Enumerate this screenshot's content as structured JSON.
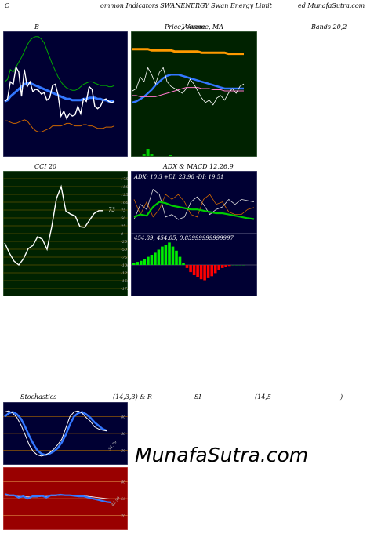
{
  "header": {
    "left": "C",
    "center": "ommon  Indicators SWANENERGY Swan  Energy Limit",
    "right": "ed MunafaSutra.com"
  },
  "panels": {
    "bollinger": {
      "title": "B",
      "subtitle": "Bands 20,2"
    },
    "price": {
      "title": "Price,  Volume, MA",
      "overlay": "Volume"
    },
    "cci": {
      "title": "CCI 20",
      "value": "73",
      "ticks": [
        "175",
        "150",
        "125",
        "100",
        "75",
        "50",
        "25",
        "0",
        "-25",
        "-50",
        "-75",
        "-100",
        "-125",
        "-150",
        "-175"
      ]
    },
    "adx": {
      "title": "ADX  & MACD 12,26,9",
      "readout": "ADX: 10.3  +DI: 23.98  -DI: 19.51"
    },
    "macd": {
      "readout": "454.89,  454.05,  0.83999999999997"
    },
    "stoch": {
      "title": "Stochastics",
      "params": "(14,3,3) & R",
      "ticks": [
        "80",
        "50",
        "20"
      ],
      "value": "54.79"
    },
    "rsi": {
      "title": "SI",
      "params": "(14,5",
      "close": ")",
      "ticks": [
        "80",
        "50",
        "20"
      ],
      "value": "42.99"
    }
  },
  "watermark": "MunafaSutra.com",
  "colors": {
    "navy": "#000033",
    "green_bg": "#002200",
    "red_bg": "#990000",
    "blue": "#3377ff",
    "orange": "#ff9900",
    "line_green": "#00cc00"
  },
  "chart_data": [
    {
      "type": "line",
      "name": "bollinger",
      "x": [
        1,
        2,
        3,
        4,
        5,
        6,
        7,
        8,
        9,
        10,
        11,
        12,
        13,
        14,
        15,
        16,
        17,
        18,
        19,
        20,
        21,
        22,
        23,
        24,
        25,
        26,
        27,
        28,
        29,
        30,
        31,
        32,
        33,
        34,
        35,
        36,
        37,
        38,
        39,
        40
      ],
      "series": [
        {
          "name": "upper",
          "values": [
            60,
            62,
            70,
            68,
            72,
            76,
            80,
            85,
            90,
            94,
            96,
            97,
            97,
            95,
            92,
            86,
            80,
            74,
            69,
            64,
            60,
            57,
            55,
            54,
            53,
            53,
            54,
            56,
            58,
            59,
            60,
            60,
            59,
            58,
            57,
            57,
            57,
            56,
            56,
            57
          ]
        },
        {
          "name": "middle",
          "values": [
            44,
            45,
            48,
            50,
            52,
            54,
            56,
            58,
            59,
            59,
            58,
            57,
            56,
            55,
            54,
            53,
            52,
            51,
            50,
            49,
            48,
            47,
            46,
            46,
            45,
            45,
            45,
            45,
            46,
            46,
            47,
            47,
            47,
            46,
            46,
            45,
            45,
            44,
            44,
            44
          ]
        },
        {
          "name": "lower",
          "values": [
            28,
            28,
            27,
            26,
            26,
            27,
            28,
            29,
            28,
            25,
            22,
            20,
            19,
            19,
            20,
            21,
            22,
            24,
            24,
            24,
            24,
            25,
            26,
            26,
            25,
            24,
            24,
            24,
            25,
            25,
            24,
            24,
            23,
            22,
            22,
            22,
            23,
            23,
            23,
            24
          ]
        },
        {
          "name": "price",
          "values": [
            44,
            46,
            60,
            58,
            72,
            68,
            48,
            70,
            56,
            60,
            52,
            54,
            53,
            50,
            51,
            45,
            47,
            57,
            58,
            49,
            32,
            36,
            30,
            34,
            32,
            33,
            40,
            34,
            46,
            44,
            56,
            54,
            40,
            38,
            40,
            45,
            46,
            44,
            43,
            44
          ]
        }
      ]
    },
    {
      "type": "line",
      "name": "price_ma",
      "x": [
        1,
        2,
        3,
        4,
        5,
        6,
        7,
        8,
        9,
        10,
        11,
        12,
        13,
        14,
        15,
        16,
        17,
        18,
        19,
        20,
        21,
        22,
        23,
        24,
        25,
        26,
        27,
        28,
        29,
        30
      ],
      "series": [
        {
          "name": "ma_long",
          "values": [
            86,
            86,
            86,
            86,
            86,
            85,
            85,
            85,
            85,
            85,
            85,
            84,
            84,
            84,
            84,
            84,
            84,
            84,
            83,
            83,
            83,
            83,
            83,
            83,
            83,
            82,
            82,
            82,
            82,
            82
          ]
        },
        {
          "name": "ma_mid",
          "values": [
            40,
            41,
            43,
            45,
            48,
            51,
            55,
            58,
            61,
            63,
            64,
            64,
            64,
            63,
            62,
            61,
            60,
            59,
            58,
            57,
            56,
            55,
            54,
            53,
            52,
            52,
            52,
            52,
            52,
            52
          ]
        },
        {
          "name": "ma_short",
          "values": [
            46,
            46,
            45,
            45,
            45,
            45,
            45,
            46,
            47,
            48,
            49,
            50,
            51,
            52,
            53,
            53,
            53,
            53,
            52,
            52,
            52,
            51,
            51,
            51,
            50,
            50,
            50,
            50,
            50,
            50
          ]
        },
        {
          "name": "price",
          "values": [
            50,
            52,
            62,
            58,
            70,
            64,
            56,
            66,
            70,
            58,
            54,
            52,
            50,
            48,
            52,
            60,
            56,
            50,
            44,
            40,
            42,
            38,
            44,
            46,
            42,
            48,
            52,
            48,
            54,
            56
          ]
        }
      ],
      "volume": [
        0,
        0,
        0,
        2,
        9,
        3,
        0,
        0,
        0,
        0,
        1,
        0,
        0,
        0,
        0,
        0,
        0,
        0,
        0,
        0,
        0,
        0,
        0,
        0,
        0,
        0,
        0,
        0,
        0,
        0
      ]
    },
    {
      "type": "line",
      "name": "cci",
      "ylim": [
        -175,
        175
      ],
      "x": [
        1,
        2,
        3,
        4,
        5,
        6,
        7,
        8,
        9,
        10,
        11,
        12,
        13,
        14,
        15,
        16,
        17,
        18,
        19,
        20,
        21,
        22
      ],
      "values": [
        -30,
        -62,
        -88,
        -100,
        -80,
        -48,
        -38,
        -10,
        -18,
        -50,
        22,
        112,
        150,
        72,
        62,
        56,
        22,
        20,
        42,
        64,
        73,
        73
      ]
    },
    {
      "type": "line",
      "name": "adx",
      "x": [
        1,
        2,
        3,
        4,
        5,
        6,
        7,
        8,
        9,
        10,
        11,
        12,
        13,
        14,
        15,
        16,
        17,
        18,
        19,
        20
      ],
      "series": [
        {
          "name": "adx",
          "values": [
            12,
            14,
            13,
            20,
            24,
            23,
            21,
            20,
            19,
            18,
            18,
            17,
            16,
            15,
            15,
            14,
            13,
            12,
            11,
            10.3
          ]
        },
        {
          "name": "plus_di",
          "values": [
            10,
            22,
            18,
            34,
            30,
            12,
            14,
            10,
            12,
            24,
            28,
            22,
            14,
            18,
            20,
            26,
            22,
            26,
            25,
            23.98
          ]
        },
        {
          "name": "minus_di",
          "values": [
            26,
            14,
            24,
            12,
            18,
            30,
            26,
            30,
            24,
            14,
            12,
            26,
            30,
            22,
            24,
            16,
            14,
            14,
            18,
            19.51
          ]
        }
      ]
    },
    {
      "type": "bar",
      "name": "macd_histogram",
      "x": [
        1,
        2,
        3,
        4,
        5,
        6,
        7,
        8,
        9,
        10,
        11,
        12,
        13,
        14,
        15,
        16,
        17,
        18,
        19,
        20,
        21,
        22,
        23,
        24,
        25,
        26,
        27,
        28,
        29,
        30,
        31,
        32
      ],
      "values": [
        2,
        3,
        4,
        6,
        8,
        10,
        12,
        15,
        18,
        20,
        22,
        18,
        14,
        8,
        2,
        -3,
        -7,
        -10,
        -12,
        -14,
        -15,
        -13,
        -11,
        -8,
        -5,
        -3,
        -2,
        -1,
        0,
        0,
        0,
        0
      ]
    },
    {
      "type": "line",
      "name": "stochastics",
      "ylim": [
        0,
        100
      ],
      "x": [
        1,
        2,
        3,
        4,
        5,
        6,
        7,
        8,
        9,
        10,
        11,
        12,
        13,
        14,
        15,
        16,
        17,
        18,
        19,
        20,
        21,
        22,
        23,
        24,
        25,
        26
      ],
      "series": [
        {
          "name": "k",
          "values": [
            88,
            90,
            86,
            78,
            65,
            48,
            30,
            18,
            12,
            10,
            12,
            16,
            22,
            30,
            40,
            60,
            80,
            88,
            90,
            86,
            78,
            72,
            62,
            58,
            56,
            54.79
          ]
        },
        {
          "name": "d",
          "values": [
            80,
            86,
            88,
            84,
            76,
            62,
            46,
            32,
            20,
            14,
            12,
            14,
            18,
            24,
            34,
            48,
            66,
            80,
            86,
            88,
            84,
            78,
            70,
            64,
            58,
            55
          ]
        }
      ]
    },
    {
      "type": "line",
      "name": "rsi",
      "ylim": [
        0,
        100
      ],
      "x": [
        1,
        2,
        3,
        4,
        5,
        6,
        7,
        8,
        9,
        10,
        11,
        12,
        13,
        14,
        15,
        16,
        17,
        18,
        19,
        20,
        21,
        22,
        23,
        24
      ],
      "series": [
        {
          "name": "rsi",
          "values": [
            58,
            56,
            56,
            52,
            54,
            50,
            54,
            54,
            55,
            52,
            56,
            56,
            57,
            56,
            56,
            55,
            54,
            54,
            52,
            50,
            48,
            46,
            44,
            42.99
          ]
        },
        {
          "name": "rsi_smooth",
          "values": [
            56,
            55,
            55,
            54,
            54,
            53,
            53,
            53,
            54,
            54,
            55,
            55,
            56,
            56,
            56,
            56,
            55,
            55,
            54,
            53,
            52,
            51,
            50,
            49
          ]
        }
      ]
    }
  ]
}
